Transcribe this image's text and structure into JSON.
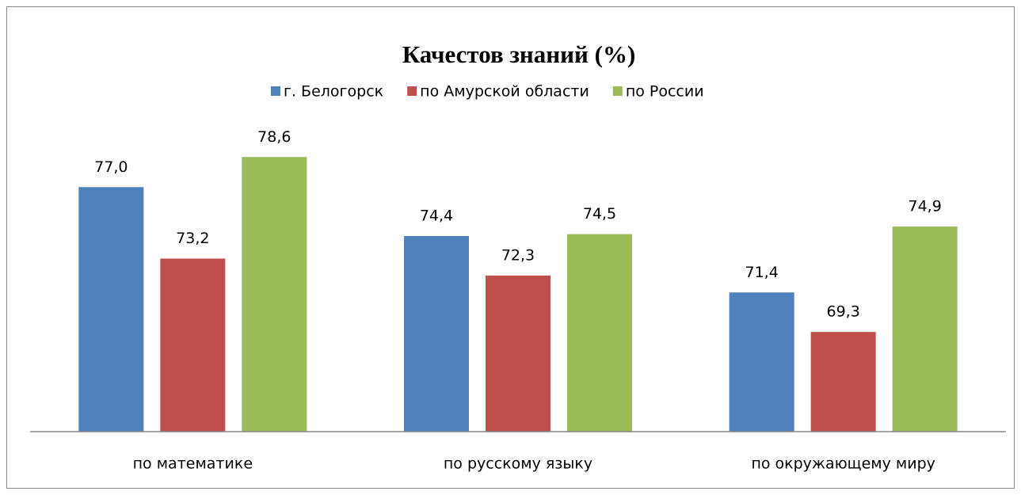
{
  "chart_data": {
    "type": "bar",
    "title": "Качестов знаний (%)",
    "categories": [
      "по математике",
      "по русскому языку",
      "по окружающему миру"
    ],
    "series": [
      {
        "name": "г. Белогорск",
        "color": "#4f81bd",
        "values": [
          77.0,
          74.4,
          71.4
        ],
        "value_labels": [
          "77,0",
          "74,4",
          "71,4"
        ]
      },
      {
        "name": "по Амурской области",
        "color": "#c0504d",
        "values": [
          73.2,
          72.3,
          69.3
        ],
        "value_labels": [
          "73,2",
          "72,3",
          "69,3"
        ]
      },
      {
        "name": "по России",
        "color": "#9bbb59",
        "values": [
          78.6,
          74.5,
          74.9
        ],
        "value_labels": [
          "78,6",
          "74,5",
          "74,9"
        ]
      }
    ],
    "ylim": [
      64,
      80
    ],
    "legend": "top"
  }
}
